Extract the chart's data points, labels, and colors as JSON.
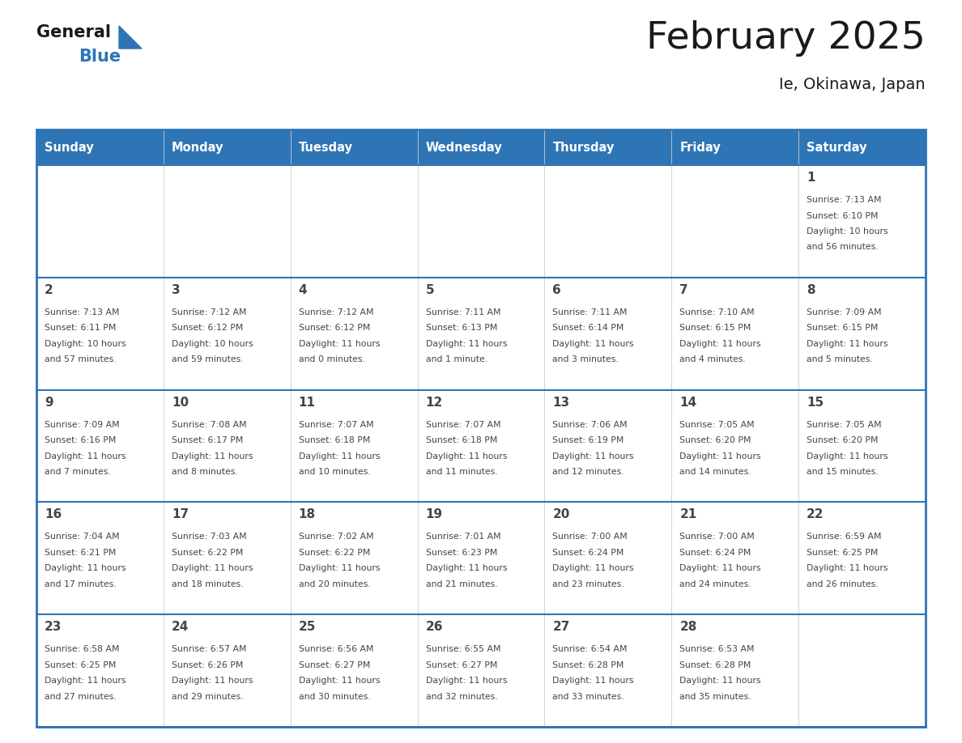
{
  "title": "February 2025",
  "subtitle": "Ie, Okinawa, Japan",
  "days_of_week": [
    "Sunday",
    "Monday",
    "Tuesday",
    "Wednesday",
    "Thursday",
    "Friday",
    "Saturday"
  ],
  "header_bg": "#2E75B6",
  "header_text_color": "#FFFFFF",
  "cell_bg": "#FFFFFF",
  "cell_bg_alt": "#F0F0F0",
  "divider_color": "#2E75B6",
  "border_color": "#2E75B6",
  "inner_line_color": "#CCCCCC",
  "text_color": "#444444",
  "title_color": "#1a1a1a",
  "logo_general_color": "#1a1a1a",
  "logo_blue_color": "#2E75B6",
  "weeks": [
    [
      {
        "day": null,
        "info": null
      },
      {
        "day": null,
        "info": null
      },
      {
        "day": null,
        "info": null
      },
      {
        "day": null,
        "info": null
      },
      {
        "day": null,
        "info": null
      },
      {
        "day": null,
        "info": null
      },
      {
        "day": 1,
        "info": "Sunrise: 7:13 AM\nSunset: 6:10 PM\nDaylight: 10 hours\nand 56 minutes."
      }
    ],
    [
      {
        "day": 2,
        "info": "Sunrise: 7:13 AM\nSunset: 6:11 PM\nDaylight: 10 hours\nand 57 minutes."
      },
      {
        "day": 3,
        "info": "Sunrise: 7:12 AM\nSunset: 6:12 PM\nDaylight: 10 hours\nand 59 minutes."
      },
      {
        "day": 4,
        "info": "Sunrise: 7:12 AM\nSunset: 6:12 PM\nDaylight: 11 hours\nand 0 minutes."
      },
      {
        "day": 5,
        "info": "Sunrise: 7:11 AM\nSunset: 6:13 PM\nDaylight: 11 hours\nand 1 minute."
      },
      {
        "day": 6,
        "info": "Sunrise: 7:11 AM\nSunset: 6:14 PM\nDaylight: 11 hours\nand 3 minutes."
      },
      {
        "day": 7,
        "info": "Sunrise: 7:10 AM\nSunset: 6:15 PM\nDaylight: 11 hours\nand 4 minutes."
      },
      {
        "day": 8,
        "info": "Sunrise: 7:09 AM\nSunset: 6:15 PM\nDaylight: 11 hours\nand 5 minutes."
      }
    ],
    [
      {
        "day": 9,
        "info": "Sunrise: 7:09 AM\nSunset: 6:16 PM\nDaylight: 11 hours\nand 7 minutes."
      },
      {
        "day": 10,
        "info": "Sunrise: 7:08 AM\nSunset: 6:17 PM\nDaylight: 11 hours\nand 8 minutes."
      },
      {
        "day": 11,
        "info": "Sunrise: 7:07 AM\nSunset: 6:18 PM\nDaylight: 11 hours\nand 10 minutes."
      },
      {
        "day": 12,
        "info": "Sunrise: 7:07 AM\nSunset: 6:18 PM\nDaylight: 11 hours\nand 11 minutes."
      },
      {
        "day": 13,
        "info": "Sunrise: 7:06 AM\nSunset: 6:19 PM\nDaylight: 11 hours\nand 12 minutes."
      },
      {
        "day": 14,
        "info": "Sunrise: 7:05 AM\nSunset: 6:20 PM\nDaylight: 11 hours\nand 14 minutes."
      },
      {
        "day": 15,
        "info": "Sunrise: 7:05 AM\nSunset: 6:20 PM\nDaylight: 11 hours\nand 15 minutes."
      }
    ],
    [
      {
        "day": 16,
        "info": "Sunrise: 7:04 AM\nSunset: 6:21 PM\nDaylight: 11 hours\nand 17 minutes."
      },
      {
        "day": 17,
        "info": "Sunrise: 7:03 AM\nSunset: 6:22 PM\nDaylight: 11 hours\nand 18 minutes."
      },
      {
        "day": 18,
        "info": "Sunrise: 7:02 AM\nSunset: 6:22 PM\nDaylight: 11 hours\nand 20 minutes."
      },
      {
        "day": 19,
        "info": "Sunrise: 7:01 AM\nSunset: 6:23 PM\nDaylight: 11 hours\nand 21 minutes."
      },
      {
        "day": 20,
        "info": "Sunrise: 7:00 AM\nSunset: 6:24 PM\nDaylight: 11 hours\nand 23 minutes."
      },
      {
        "day": 21,
        "info": "Sunrise: 7:00 AM\nSunset: 6:24 PM\nDaylight: 11 hours\nand 24 minutes."
      },
      {
        "day": 22,
        "info": "Sunrise: 6:59 AM\nSunset: 6:25 PM\nDaylight: 11 hours\nand 26 minutes."
      }
    ],
    [
      {
        "day": 23,
        "info": "Sunrise: 6:58 AM\nSunset: 6:25 PM\nDaylight: 11 hours\nand 27 minutes."
      },
      {
        "day": 24,
        "info": "Sunrise: 6:57 AM\nSunset: 6:26 PM\nDaylight: 11 hours\nand 29 minutes."
      },
      {
        "day": 25,
        "info": "Sunrise: 6:56 AM\nSunset: 6:27 PM\nDaylight: 11 hours\nand 30 minutes."
      },
      {
        "day": 26,
        "info": "Sunrise: 6:55 AM\nSunset: 6:27 PM\nDaylight: 11 hours\nand 32 minutes."
      },
      {
        "day": 27,
        "info": "Sunrise: 6:54 AM\nSunset: 6:28 PM\nDaylight: 11 hours\nand 33 minutes."
      },
      {
        "day": 28,
        "info": "Sunrise: 6:53 AM\nSunset: 6:28 PM\nDaylight: 11 hours\nand 35 minutes."
      },
      {
        "day": null,
        "info": null
      }
    ]
  ]
}
